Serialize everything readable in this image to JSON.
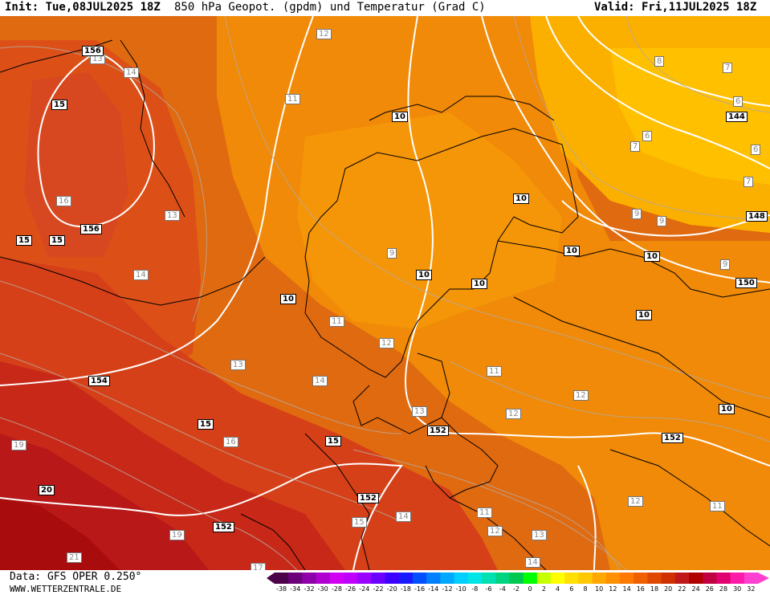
{
  "header": {
    "init": "Init: Tue,08JUL2025 18Z",
    "title": "850 hPa Geopot. (gpdm) und Temperatur (Grad C)",
    "valid": "Valid: Fri,11JUL2025 18Z"
  },
  "footer": {
    "data_source": "Data: GFS OPER 0.250°",
    "website": "WWW.WETTERZENTRALE.DE"
  },
  "temperature_labels": [
    "12",
    "13",
    "14",
    "15",
    "16",
    "11",
    "10",
    "9",
    "8",
    "7",
    "6",
    "12",
    "13",
    "14",
    "15",
    "16",
    "19",
    "20",
    "21",
    "17",
    "13",
    "14",
    "13",
    "14",
    "15",
    "14",
    "16",
    "11",
    "12",
    "11",
    "13",
    "12",
    "11",
    "11",
    "12",
    "13",
    "14",
    "12",
    "9",
    "9",
    "8",
    "7",
    "6",
    "7",
    "6",
    "6",
    "7"
  ],
  "geopotential_labels": [
    "156",
    "156",
    "15",
    "15",
    "15",
    "154",
    "15",
    "15",
    "152",
    "152",
    "152",
    "152",
    "150",
    "148",
    "144",
    "10",
    "10",
    "10",
    "10",
    "10",
    "10",
    "10",
    "10",
    "10",
    "20"
  ],
  "colorscale": {
    "ticks": [
      "-38",
      "-34",
      "-32",
      "-30",
      "-28",
      "-26",
      "-24",
      "-22",
      "-20",
      "-18",
      "-16",
      "-14",
      "-12",
      "-10",
      "-8",
      "-6",
      "-4",
      "-2",
      "0",
      "2",
      "4",
      "6",
      "8",
      "10",
      "12",
      "14",
      "16",
      "18",
      "20",
      "22",
      "24",
      "26",
      "28",
      "30",
      "32"
    ],
    "colors": [
      "#4b0049",
      "#6c007a",
      "#8e00a8",
      "#b000cf",
      "#d200f2",
      "#c000ff",
      "#9900ff",
      "#6b00ff",
      "#3d00ff",
      "#1a1aff",
      "#0050ff",
      "#0080ff",
      "#00a8ff",
      "#00cfff",
      "#00e6e6",
      "#00e0b0",
      "#00d480",
      "#00c850",
      "#00ff00",
      "#c8ff00",
      "#ffff00",
      "#ffe000",
      "#ffc800",
      "#ffa800",
      "#ff9000",
      "#ff7800",
      "#f06000",
      "#e04800",
      "#d03000",
      "#c01818",
      "#b00000",
      "#c00040",
      "#e00070",
      "#ff1aa8",
      "#ff40d0"
    ]
  }
}
